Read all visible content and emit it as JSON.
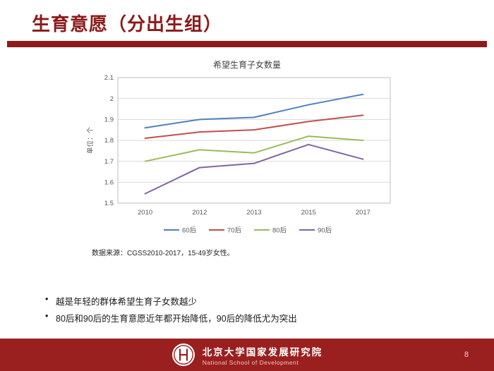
{
  "slide": {
    "title": "生育意愿（分出生组）"
  },
  "chart_data": {
    "type": "line",
    "title": "希望生育子女数量",
    "ylabel": "单位：个",
    "x_axis": "category",
    "categories": [
      "2010",
      "2012",
      "2013",
      "2015",
      "2017"
    ],
    "ylim": [
      1.5,
      2.1
    ],
    "ytick_step": 0.1,
    "grid": true,
    "legend_position": "bottom",
    "series": [
      {
        "name": "60后",
        "color": "#4F81BD",
        "values": [
          1.86,
          1.9,
          1.91,
          1.97,
          2.02
        ]
      },
      {
        "name": "70后",
        "color": "#C0504D",
        "values": [
          1.81,
          1.84,
          1.85,
          1.89,
          1.92
        ]
      },
      {
        "name": "80后",
        "color": "#9BBB59",
        "values": [
          1.7,
          1.755,
          1.74,
          1.82,
          1.8
        ]
      },
      {
        "name": "90后",
        "color": "#8064A2",
        "values": [
          1.545,
          1.67,
          1.69,
          1.78,
          1.71
        ]
      }
    ]
  },
  "source_note": "数据来源：CGSS2010-2017，15-49岁女性。",
  "bullets": [
    "越是年轻的群体希望生育子女数越少",
    "80后和90后的生育意愿近年都开始降低，90后的降低尤为突出"
  ],
  "footer": {
    "org_cn": "北京大学国家发展研究院",
    "org_en": "National School of Development",
    "page_number": "8"
  },
  "colors": {
    "accent_red": "#8E1B1B",
    "footer_red": "#9A1F1F",
    "gridline": "#D9D9D9"
  }
}
